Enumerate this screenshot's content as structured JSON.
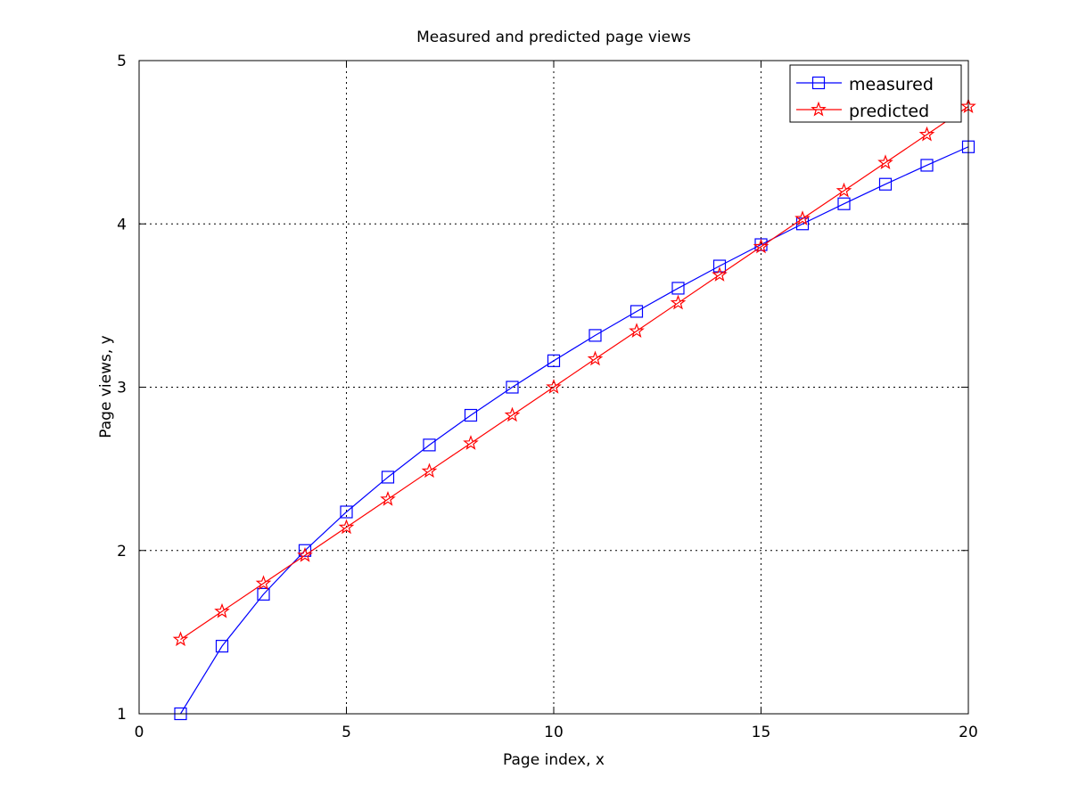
{
  "chart_data": {
    "type": "line",
    "title": "Measured and predicted page views",
    "xlabel": "Page index, x",
    "ylabel": "Page views, y",
    "xlim": [
      0,
      20
    ],
    "ylim": [
      1,
      5
    ],
    "xticks": [
      0,
      5,
      10,
      15,
      20
    ],
    "yticks": [
      1,
      2,
      3,
      4,
      5
    ],
    "grid": true,
    "legend_position": "top-right",
    "x": [
      1,
      2,
      3,
      4,
      5,
      6,
      7,
      8,
      9,
      10,
      11,
      12,
      13,
      14,
      15,
      16,
      17,
      18,
      19,
      20
    ],
    "series": [
      {
        "name": "measured",
        "color": "#0000ff",
        "marker": "square",
        "values": [
          1.0,
          1.414,
          1.732,
          2.0,
          2.236,
          2.449,
          2.646,
          2.828,
          3.0,
          3.162,
          3.317,
          3.464,
          3.606,
          3.742,
          3.873,
          4.0,
          4.123,
          4.243,
          4.359,
          4.472
        ]
      },
      {
        "name": "predicted",
        "color": "#ff0000",
        "marker": "pentagram",
        "values": [
          1.455,
          1.627,
          1.799,
          1.97,
          2.142,
          2.314,
          2.486,
          2.657,
          2.829,
          3.001,
          3.173,
          3.344,
          3.516,
          3.688,
          3.86,
          4.032,
          4.203,
          4.375,
          4.547,
          4.719
        ]
      }
    ]
  }
}
